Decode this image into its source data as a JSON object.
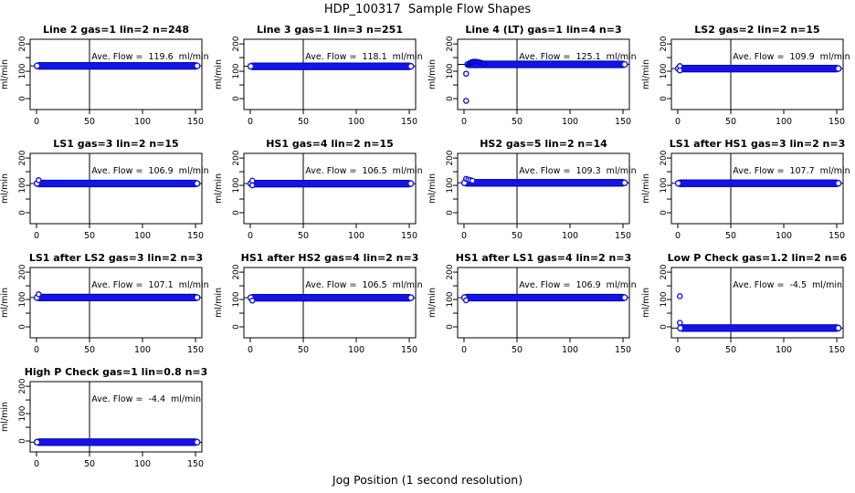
{
  "chart_data": {
    "type": "scatter",
    "title": "HDP_100317  Sample Flow Shapes",
    "xlabel": "Jog Position (1 second resolution)",
    "ylabel": "ml/min",
    "x_ticks": [
      0,
      50,
      100,
      150
    ],
    "y_ticks_all": [
      0,
      50,
      100,
      150,
      200
    ],
    "y_ticks_labeled": [
      0,
      100,
      200
    ],
    "xlim": [
      -6,
      156
    ],
    "ylim": [
      -40,
      217
    ],
    "vline_x": 50,
    "grid": false,
    "legend": false,
    "point_color": "#1414e6",
    "point_edge_color": "#0000b4",
    "axis_color": "#000000",
    "panels": [
      {
        "title": "Line 2 gas=1 lin=2 n=248",
        "ave_flow": 119.6,
        "ave_label": "Ave. Flow =  119.6  ml/min",
        "band_x": [
          0,
          152
        ],
        "outliers": [],
        "cluster": []
      },
      {
        "title": "Line 3 gas=1 lin=3 n=251",
        "ave_flow": 118.1,
        "ave_label": "Ave. Flow =  118.1  ml/min",
        "band_x": [
          0,
          152
        ],
        "outliers": [],
        "cluster": []
      },
      {
        "title": "Line 4 (LT) gas=1 lin=4 n=3",
        "ave_flow": 125.1,
        "ave_label": "Ave. Flow =  125.1  ml/min",
        "band_x": [
          3,
          152
        ],
        "outliers": [
          [
            2,
            -8
          ],
          [
            2,
            91
          ]
        ],
        "cluster": [
          [
            4,
            122
          ],
          [
            5,
            127
          ],
          [
            6,
            131
          ],
          [
            7,
            134
          ],
          [
            9,
            136
          ],
          [
            11,
            136
          ],
          [
            13,
            135
          ],
          [
            15,
            133
          ],
          [
            17,
            131
          ],
          [
            19,
            128
          ]
        ]
      },
      {
        "title": "LS2 gas=2 lin=2 n=15",
        "ave_flow": 109.9,
        "ave_label": "Ave. Flow =  109.9  ml/min",
        "band_x": [
          0,
          152
        ],
        "outliers": [
          [
            2,
            119
          ],
          [
            2,
            103
          ]
        ],
        "cluster": []
      },
      {
        "title": "LS1 gas=3 lin=2 n=15",
        "ave_flow": 106.9,
        "ave_label": "Ave. Flow =  106.9  ml/min",
        "band_x": [
          0,
          152
        ],
        "outliers": [
          [
            2,
            119
          ]
        ],
        "cluster": []
      },
      {
        "title": "HS1 gas=4 lin=2 n=15",
        "ave_flow": 106.5,
        "ave_label": "Ave. Flow =  106.5  ml/min",
        "band_x": [
          0,
          152
        ],
        "outliers": [
          [
            2,
            117
          ],
          [
            2,
            100
          ]
        ],
        "cluster": []
      },
      {
        "title": "HS2 gas=5 lin=2 n=14",
        "ave_flow": 109.3,
        "ave_label": "Ave. Flow =  109.3  ml/min",
        "band_x": [
          0,
          152
        ],
        "outliers": [
          [
            2,
            124
          ],
          [
            4,
            121
          ],
          [
            6,
            119
          ],
          [
            8,
            117
          ]
        ],
        "cluster": []
      },
      {
        "title": "LS1 after HS1 gas=3 lin=2 n=3",
        "ave_flow": 107.7,
        "ave_label": "Ave. Flow =  107.7  ml/min",
        "band_x": [
          0,
          152
        ],
        "outliers": [],
        "cluster": []
      },
      {
        "title": "LS1 after LS2 gas=3 lin=2 n=3",
        "ave_flow": 107.1,
        "ave_label": "Ave. Flow =  107.1  ml/min",
        "band_x": [
          0,
          152
        ],
        "outliers": [
          [
            2,
            119
          ]
        ],
        "cluster": []
      },
      {
        "title": "HS1 after HS2 gas=4 lin=2 n=3",
        "ave_flow": 106.5,
        "ave_label": "Ave. Flow =  106.5  ml/min",
        "band_x": [
          0,
          152
        ],
        "outliers": [
          [
            2,
            96
          ]
        ],
        "cluster": []
      },
      {
        "title": "HS1 after LS1 gas=4 lin=2 n=3",
        "ave_flow": 106.9,
        "ave_label": "Ave. Flow =  106.9  ml/min",
        "band_x": [
          0,
          152
        ],
        "outliers": [
          [
            2,
            97
          ]
        ],
        "cluster": []
      },
      {
        "title": "Low P Check gas=1.2 lin=2 n=6",
        "ave_flow": -4.5,
        "ave_label": "Ave. Flow =  -4.5  ml/min",
        "band_x": [
          2,
          152
        ],
        "outliers": [
          [
            2,
            112
          ],
          [
            2,
            15
          ]
        ],
        "cluster": []
      },
      {
        "title": "High P Check gas=1 lin=0.8 n=3",
        "ave_flow": -4.4,
        "ave_label": "Ave. Flow =  -4.4  ml/min",
        "band_x": [
          0,
          152
        ],
        "outliers": [],
        "cluster": []
      }
    ]
  }
}
